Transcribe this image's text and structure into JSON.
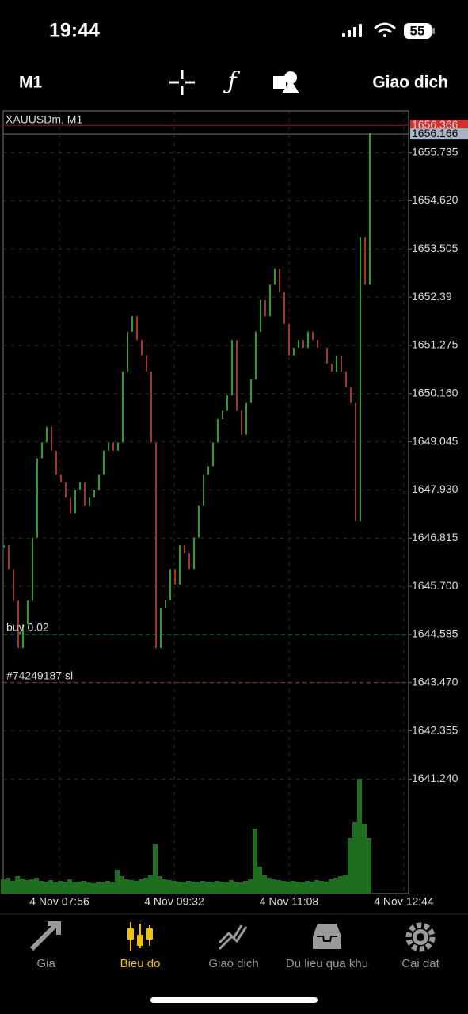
{
  "status_bar": {
    "time": "19:44",
    "battery": "55"
  },
  "toolbar": {
    "timeframe": "M1",
    "trade": "Giao dich"
  },
  "chart_data": {
    "type": "price",
    "title": "XAUUSDm, M1",
    "up_color": "#2f9e2f",
    "down_color": "#a83232",
    "volume_color": "#1f6e1f",
    "values": [
      1646.65,
      1646.1,
      1645.37,
      1644.27,
      1644.82,
      1645.37,
      1646.83,
      1648.66,
      1649.03,
      1649.39,
      1648.84,
      1648.29,
      1648.11,
      1647.75,
      1647.38,
      1647.93,
      1648.11,
      1647.56,
      1647.75,
      1647.93,
      1648.29,
      1648.84,
      1649.03,
      1648.84,
      1649.03,
      1650.67,
      1651.59,
      1651.95,
      1651.4,
      1651.04,
      1650.67,
      1649.03,
      1644.27,
      1645.19,
      1645.37,
      1646.1,
      1645.74,
      1646.65,
      1646.47,
      1646.1,
      1646.83,
      1647.56,
      1648.29,
      1648.48,
      1649.03,
      1649.57,
      1649.76,
      1650.12,
      1651.4,
      1649.76,
      1649.21,
      1649.94,
      1650.49,
      1651.59,
      1652.32,
      1651.95,
      1652.68,
      1653.05,
      1652.5,
      1651.77,
      1651.04,
      1651.22,
      1651.4,
      1651.22,
      1651.59,
      1651.4,
      1651.22,
      1651.22,
      1650.85,
      1650.67,
      1651.04,
      1650.67,
      1650.31,
      1649.94,
      1647.2,
      1653.78,
      1652.68,
      1656.19
    ],
    "volumes": [
      18,
      20,
      16,
      22,
      19,
      17,
      18,
      20,
      16,
      15,
      17,
      14,
      16,
      15,
      18,
      14,
      15,
      16,
      14,
      13,
      15,
      14,
      16,
      14,
      30,
      22,
      18,
      17,
      16,
      18,
      20,
      24,
      62,
      22,
      18,
      17,
      16,
      15,
      14,
      16,
      15,
      14,
      16,
      15,
      14,
      16,
      15,
      14,
      17,
      15,
      14,
      16,
      18,
      82,
      34,
      24,
      20,
      18,
      17,
      16,
      15,
      16,
      15,
      14,
      16,
      15,
      17,
      16,
      15,
      18,
      20,
      22,
      24,
      70,
      90,
      145,
      88,
      70
    ],
    "vlim": [
      0,
      200
    ],
    "ylim": [
      1638.59,
      1656.7
    ],
    "yticks": [
      1655.735,
      {
        "value": 1654.62,
        "label": "1654.620"
      },
      1653.505,
      1652.39,
      1651.275,
      {
        "value": 1650.16,
        "label": "1650.160"
      },
      1649.045,
      {
        "value": 1647.93,
        "label": "1647.930"
      },
      1646.815,
      {
        "value": 1645.7,
        "label": "1645.700"
      },
      1644.585,
      {
        "value": 1643.47,
        "label": "1643.470"
      },
      1642.355,
      {
        "value": 1641.24,
        "label": "1641.240"
      }
    ],
    "xticks": [
      "4 Nov 07:56",
      "4 Nov 09:32",
      "4 Nov 11:08",
      "4 Nov 12:44"
    ],
    "bid": 1656.366,
    "ask": 1656.166,
    "orders": [
      {
        "label": "buy 0.02",
        "price": 1644.585,
        "color": "#1f7a3a"
      },
      {
        "label": "#74249187 sl",
        "price": 1643.47,
        "color": "#a83232"
      }
    ],
    "grid": true
  },
  "nav": {
    "items": [
      "Gia",
      "Bieu do",
      "Giao dich",
      "Du lieu qua khu",
      "Cai dat"
    ],
    "active": 1
  }
}
